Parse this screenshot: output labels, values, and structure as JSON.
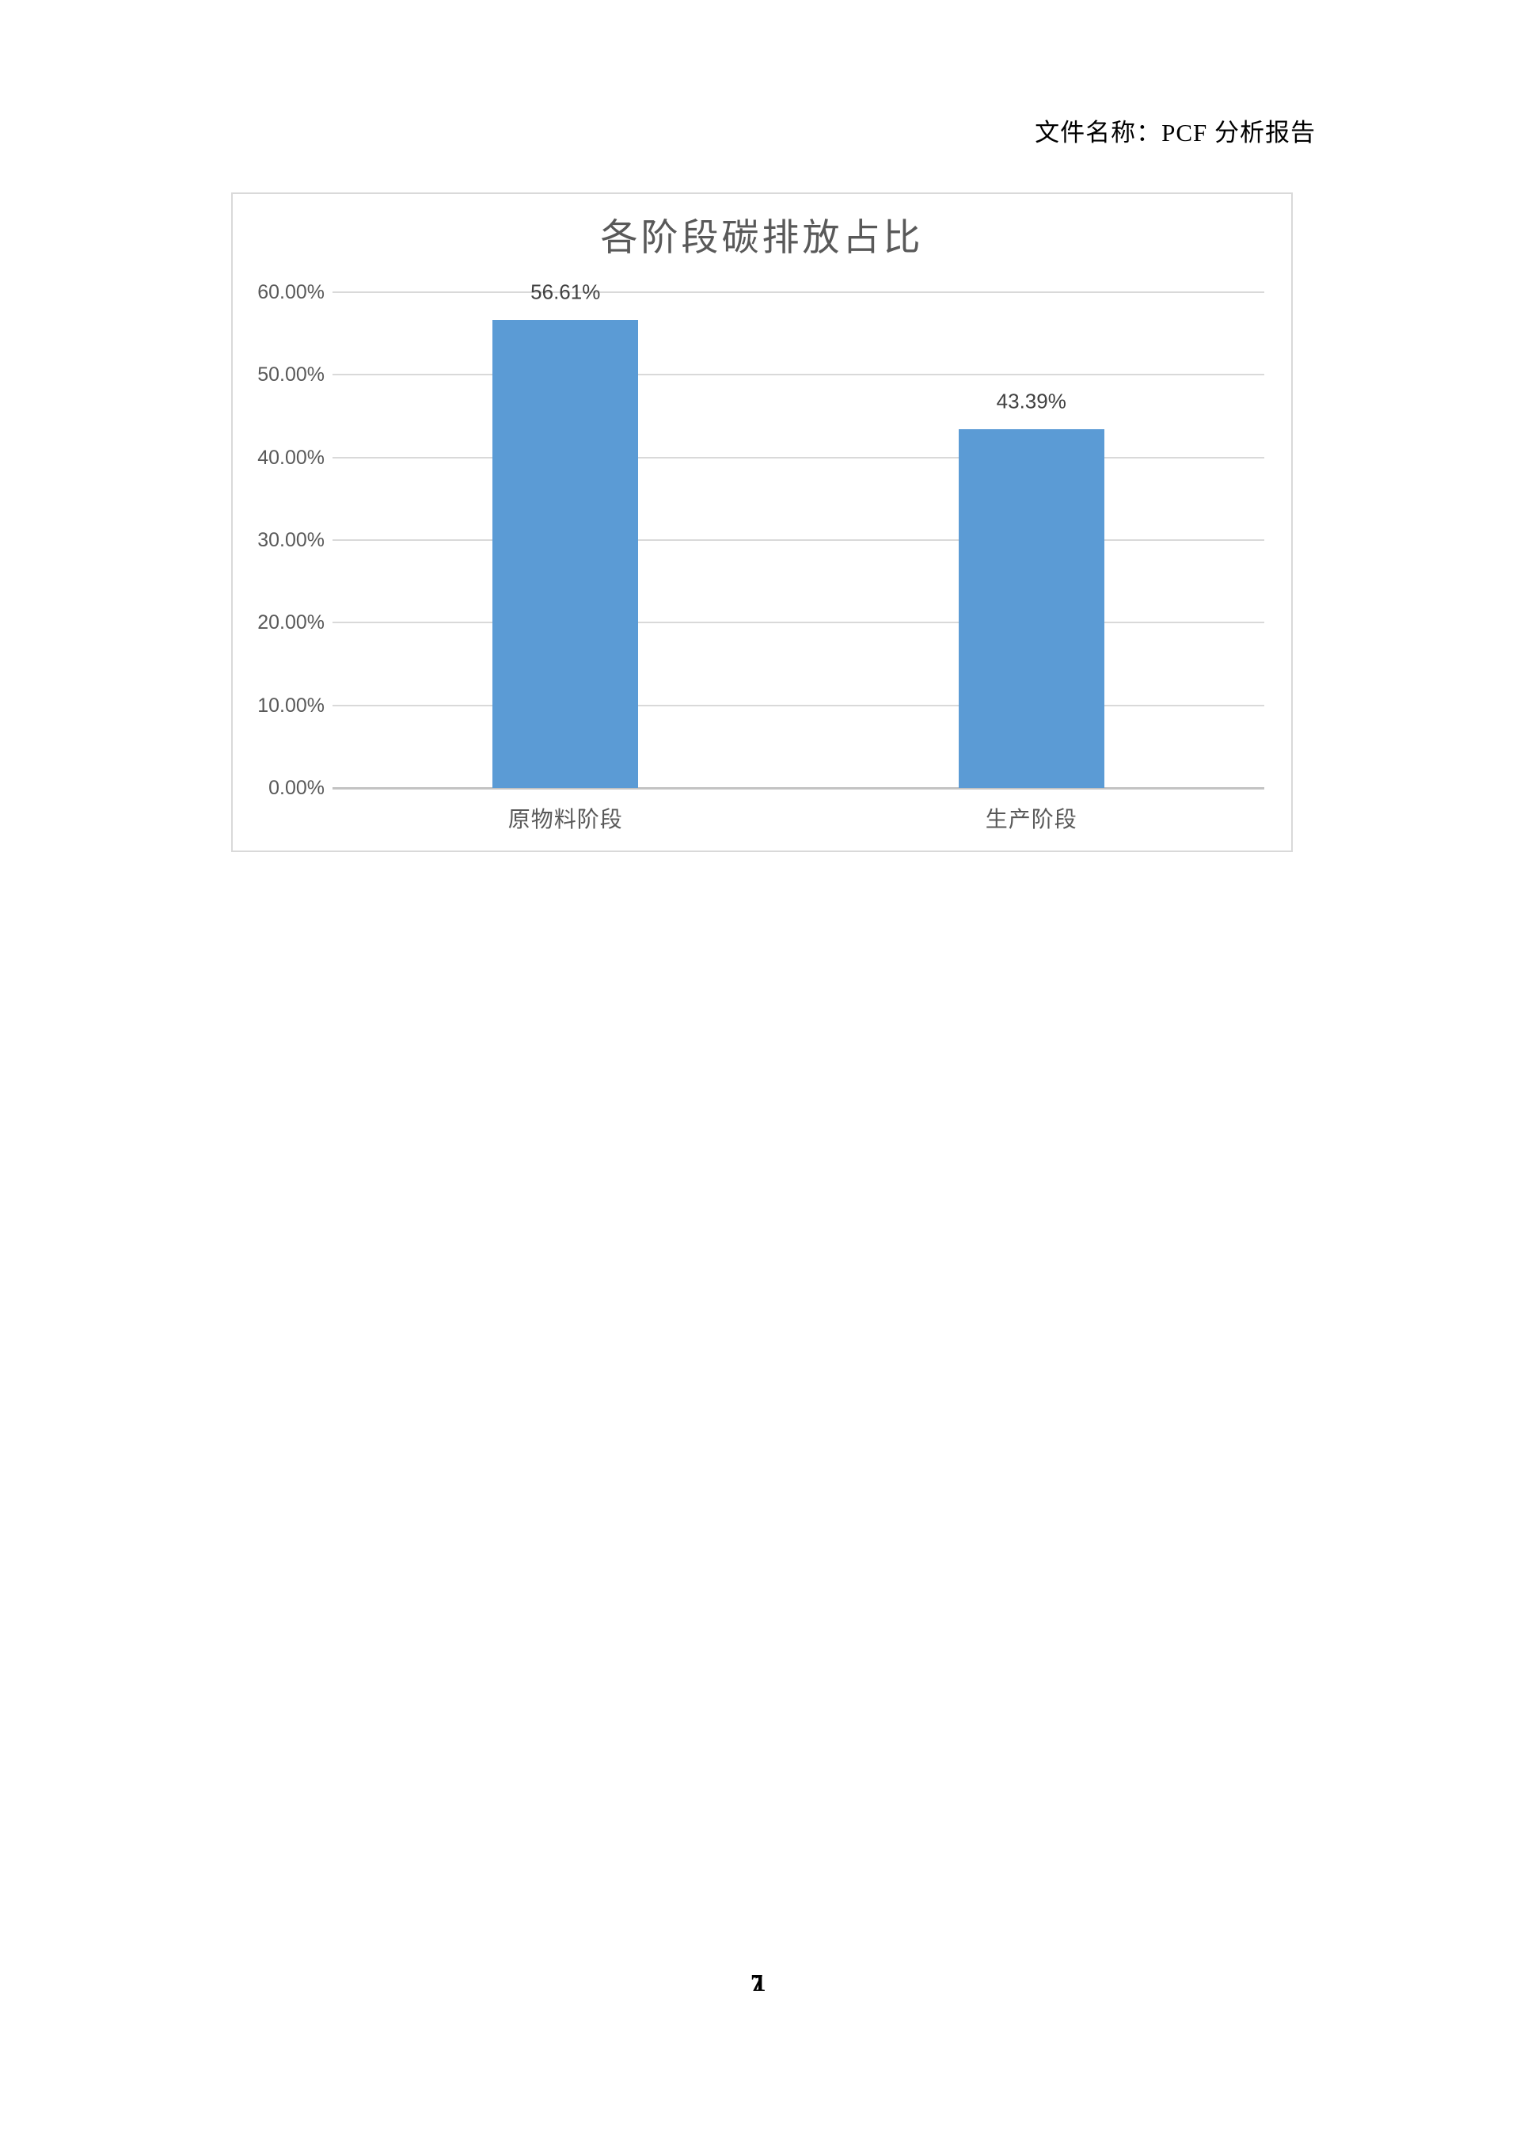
{
  "page": {
    "header": "文件名称：PCF 分析报告",
    "footer_page_numbers": [
      "7",
      "1"
    ]
  },
  "chart_data": {
    "type": "bar",
    "title": "各阶段碳排放占比",
    "categories": [
      "原物料阶段",
      "生产阶段"
    ],
    "values": [
      56.61,
      43.39
    ],
    "data_labels": [
      "56.61%",
      "43.39%"
    ],
    "xlabel": "",
    "ylabel": "",
    "ylim": [
      0,
      60
    ],
    "tick_step": 10,
    "y_tick_labels": [
      "0.00%",
      "10.00%",
      "20.00%",
      "30.00%",
      "40.00%",
      "50.00%",
      "60.00%"
    ],
    "grid": true,
    "legend": "none",
    "bar_color": "#5B9BD5",
    "gridline_color": "#D9D9D9",
    "axis_line_color": "#C3C3C3",
    "title_color": "#595959",
    "tick_label_color": "#595959",
    "data_label_color": "#404040",
    "chart_border_color": "#D9D9D9"
  }
}
